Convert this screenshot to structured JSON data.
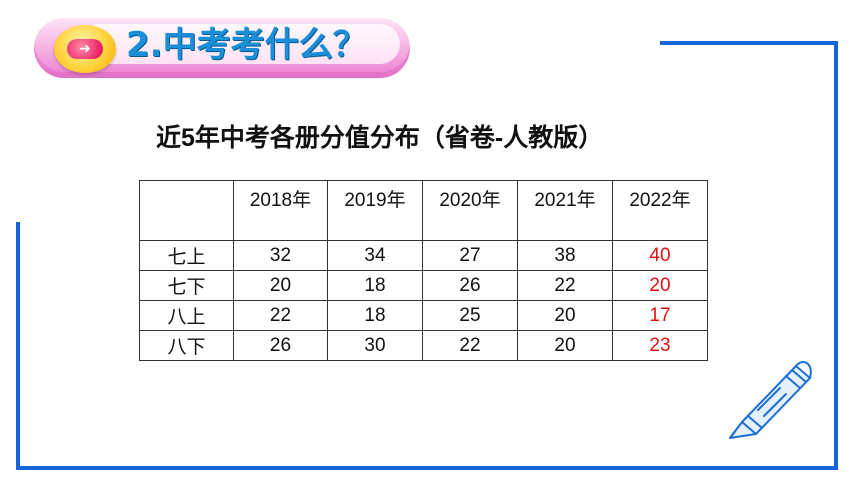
{
  "heading": {
    "number": "2.",
    "text": "中考考什么？"
  },
  "table_title": "近5年中考各册分值分布（省卷-人教版）",
  "table": {
    "columns": [
      "",
      "2018年",
      "2019年",
      "2020年",
      "2021年",
      "2022年"
    ],
    "rows": [
      {
        "label": "七上",
        "values": [
          "32",
          "34",
          "27",
          "38",
          "40"
        ]
      },
      {
        "label": "七下",
        "values": [
          "20",
          "18",
          "26",
          "22",
          "20"
        ]
      },
      {
        "label": "八上",
        "values": [
          "22",
          "18",
          "25",
          "20",
          "17"
        ]
      },
      {
        "label": "八下",
        "values": [
          "26",
          "30",
          "22",
          "20",
          "23"
        ]
      }
    ],
    "highlight_color": "#e01010"
  },
  "colors": {
    "frame": "#1565d8",
    "heading": "#1a8fd8",
    "banner": "#f7b7e6"
  },
  "icons": [
    "arrow-badge-icon",
    "pen-icon"
  ]
}
